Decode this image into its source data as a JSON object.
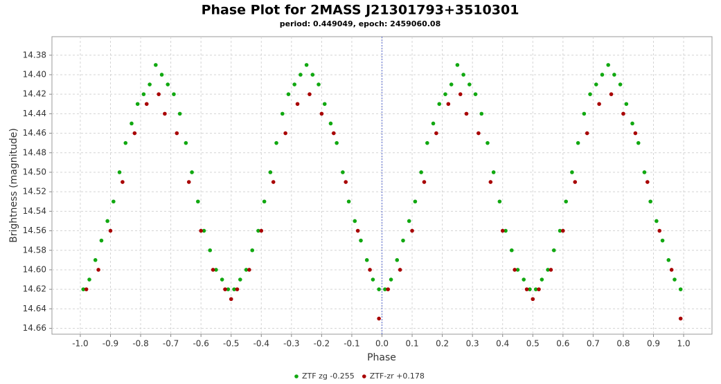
{
  "chart_data": {
    "type": "scatter",
    "title": "Phase Plot for 2MASS J21301793+3510301",
    "subtitle": "period: 0.449049, epoch: 2459060.08",
    "x_label": "Phase",
    "y_label": "Brightness (magnitude)",
    "xlim": [
      -1.094,
      1.094
    ],
    "ylim": [
      14.361,
      14.666
    ],
    "y_inverted": true,
    "grid": true,
    "legend": "bottom",
    "reference_line_x": 0,
    "xticks": [
      {
        "value": -1.0,
        "label": "-1.0"
      },
      -0.9,
      -0.8,
      -0.7,
      -0.6,
      -0.5,
      -0.4,
      -0.3,
      -0.2,
      -0.1,
      {
        "value": 0,
        "label": "0.0"
      },
      0.1,
      0.2,
      0.3,
      0.4,
      0.5,
      0.6,
      0.7,
      0.8,
      0.9,
      {
        "value": 1.0,
        "label": "1.0"
      }
    ],
    "yticks": [
      14.38,
      {
        "value": 14.4,
        "label": "14.40"
      },
      14.42,
      14.44,
      14.46,
      14.48,
      {
        "value": 14.5,
        "label": "14.50"
      },
      14.52,
      14.54,
      14.56,
      14.58,
      {
        "value": 14.6,
        "label": "14.60"
      },
      14.62,
      14.64,
      14.66
    ],
    "series": [
      {
        "name": "ZTF zg -0.255",
        "color": "#11a811",
        "x": [
          -0.99,
          -0.97,
          -0.95,
          -0.93,
          -0.91,
          -0.89,
          -0.87,
          -0.85,
          -0.83,
          -0.81,
          -0.79,
          -0.77,
          -0.75,
          -0.73,
          -0.71,
          -0.69,
          -0.67,
          -0.65,
          -0.63,
          -0.61,
          -0.59,
          -0.57,
          -0.55,
          -0.53,
          -0.51,
          -0.49,
          -0.47,
          -0.45,
          -0.43,
          -0.41,
          -0.39,
          -0.37,
          -0.35,
          -0.33,
          -0.31,
          -0.29,
          -0.27,
          -0.25,
          -0.23,
          -0.21,
          -0.19,
          -0.17,
          -0.15,
          -0.13,
          -0.11,
          -0.09,
          -0.07,
          -0.05,
          -0.03,
          -0.01,
          0.01,
          0.03,
          0.05,
          0.07,
          0.09,
          0.11,
          0.13,
          0.15,
          0.17,
          0.19,
          0.21,
          0.23,
          0.25,
          0.27,
          0.29,
          0.31,
          0.33,
          0.35,
          0.37,
          0.39,
          0.41,
          0.43,
          0.45,
          0.47,
          0.49,
          0.51,
          0.53,
          0.55,
          0.57,
          0.59,
          0.61,
          0.63,
          0.65,
          0.67,
          0.69,
          0.71,
          0.73,
          0.75,
          0.77,
          0.79,
          0.81,
          0.83,
          0.85,
          0.87,
          0.89,
          0.91,
          0.93,
          0.95,
          0.97,
          0.99
        ],
        "values": [
          14.62,
          14.61,
          14.59,
          14.57,
          14.55,
          14.53,
          14.5,
          14.47,
          14.45,
          14.43,
          14.42,
          14.41,
          14.39,
          14.4,
          14.41,
          14.42,
          14.44,
          14.47,
          14.5,
          14.53,
          14.56,
          14.58,
          14.6,
          14.61,
          14.62,
          14.62,
          14.61,
          14.6,
          14.58,
          14.56,
          14.53,
          14.5,
          14.47,
          14.44,
          14.42,
          14.41,
          14.4,
          14.39,
          14.4,
          14.41,
          14.43,
          14.45,
          14.47,
          14.5,
          14.53,
          14.55,
          14.57,
          14.59,
          14.61,
          14.62,
          14.62,
          14.61,
          14.59,
          14.57,
          14.55,
          14.53,
          14.5,
          14.47,
          14.45,
          14.43,
          14.42,
          14.41,
          14.39,
          14.4,
          14.41,
          14.42,
          14.44,
          14.47,
          14.5,
          14.53,
          14.56,
          14.58,
          14.6,
          14.61,
          14.62,
          14.62,
          14.61,
          14.6,
          14.58,
          14.56,
          14.53,
          14.5,
          14.47,
          14.44,
          14.42,
          14.41,
          14.4,
          14.39,
          14.4,
          14.41,
          14.43,
          14.45,
          14.47,
          14.5,
          14.53,
          14.55,
          14.57,
          14.59,
          14.61,
          14.62
        ]
      },
      {
        "name": "ZTF-zr +0.178",
        "color": "#a80000",
        "x": [
          -0.98,
          -0.94,
          -0.9,
          -0.86,
          -0.82,
          -0.78,
          -0.74,
          -0.72,
          -0.68,
          -0.64,
          -0.6,
          -0.56,
          -0.52,
          -0.5,
          -0.48,
          -0.44,
          -0.4,
          -0.36,
          -0.32,
          -0.28,
          -0.24,
          -0.2,
          -0.16,
          -0.12,
          -0.08,
          -0.04,
          -0.01,
          0.02,
          0.06,
          0.1,
          0.14,
          0.18,
          0.22,
          0.26,
          0.28,
          0.32,
          0.36,
          0.4,
          0.44,
          0.48,
          0.5,
          0.52,
          0.56,
          0.6,
          0.64,
          0.68,
          0.72,
          0.76,
          0.8,
          0.84,
          0.88,
          0.92,
          0.96,
          0.99
        ],
        "values": [
          14.62,
          14.6,
          14.56,
          14.51,
          14.46,
          14.43,
          14.42,
          14.44,
          14.46,
          14.51,
          14.56,
          14.6,
          14.62,
          14.63,
          14.62,
          14.6,
          14.56,
          14.51,
          14.46,
          14.43,
          14.42,
          14.44,
          14.46,
          14.51,
          14.56,
          14.6,
          14.65,
          14.62,
          14.6,
          14.56,
          14.51,
          14.46,
          14.43,
          14.42,
          14.44,
          14.46,
          14.51,
          14.56,
          14.6,
          14.62,
          14.63,
          14.62,
          14.6,
          14.56,
          14.51,
          14.46,
          14.43,
          14.42,
          14.44,
          14.46,
          14.51,
          14.56,
          14.6,
          14.65
        ]
      }
    ]
  }
}
